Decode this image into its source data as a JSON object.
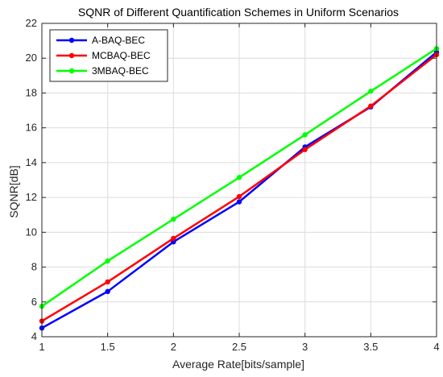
{
  "chart_data": {
    "type": "line",
    "title": "SQNR of Different Quantification Schemes in Uniform Scenarios",
    "xlabel": "Average Rate[bits/sample]",
    "ylabel": "SQNR[dB]",
    "x": [
      1,
      1.5,
      2,
      2.5,
      3,
      3.5,
      4
    ],
    "xlim": [
      1,
      4
    ],
    "ylim": [
      4,
      22
    ],
    "xticks": [
      "1",
      "1.5",
      "2",
      "2.5",
      "3",
      "3.5",
      "4"
    ],
    "yticks": [
      "4",
      "6",
      "8",
      "10",
      "12",
      "14",
      "16",
      "18",
      "20",
      "22"
    ],
    "grid": true,
    "legend_position": "top-left",
    "series": [
      {
        "name": "A-BAQ-BEC",
        "color": "#0000ff",
        "values": [
          4.5,
          6.6,
          9.45,
          11.75,
          14.9,
          17.2,
          20.35
        ]
      },
      {
        "name": "MCBAQ-BEC",
        "color": "#ff0000",
        "values": [
          4.9,
          7.15,
          9.65,
          12.05,
          14.75,
          17.25,
          20.2
        ]
      },
      {
        "name": "3MBAQ-BEC",
        "color": "#00ff00",
        "values": [
          5.75,
          8.35,
          10.75,
          13.15,
          15.6,
          18.1,
          20.55
        ]
      }
    ]
  }
}
